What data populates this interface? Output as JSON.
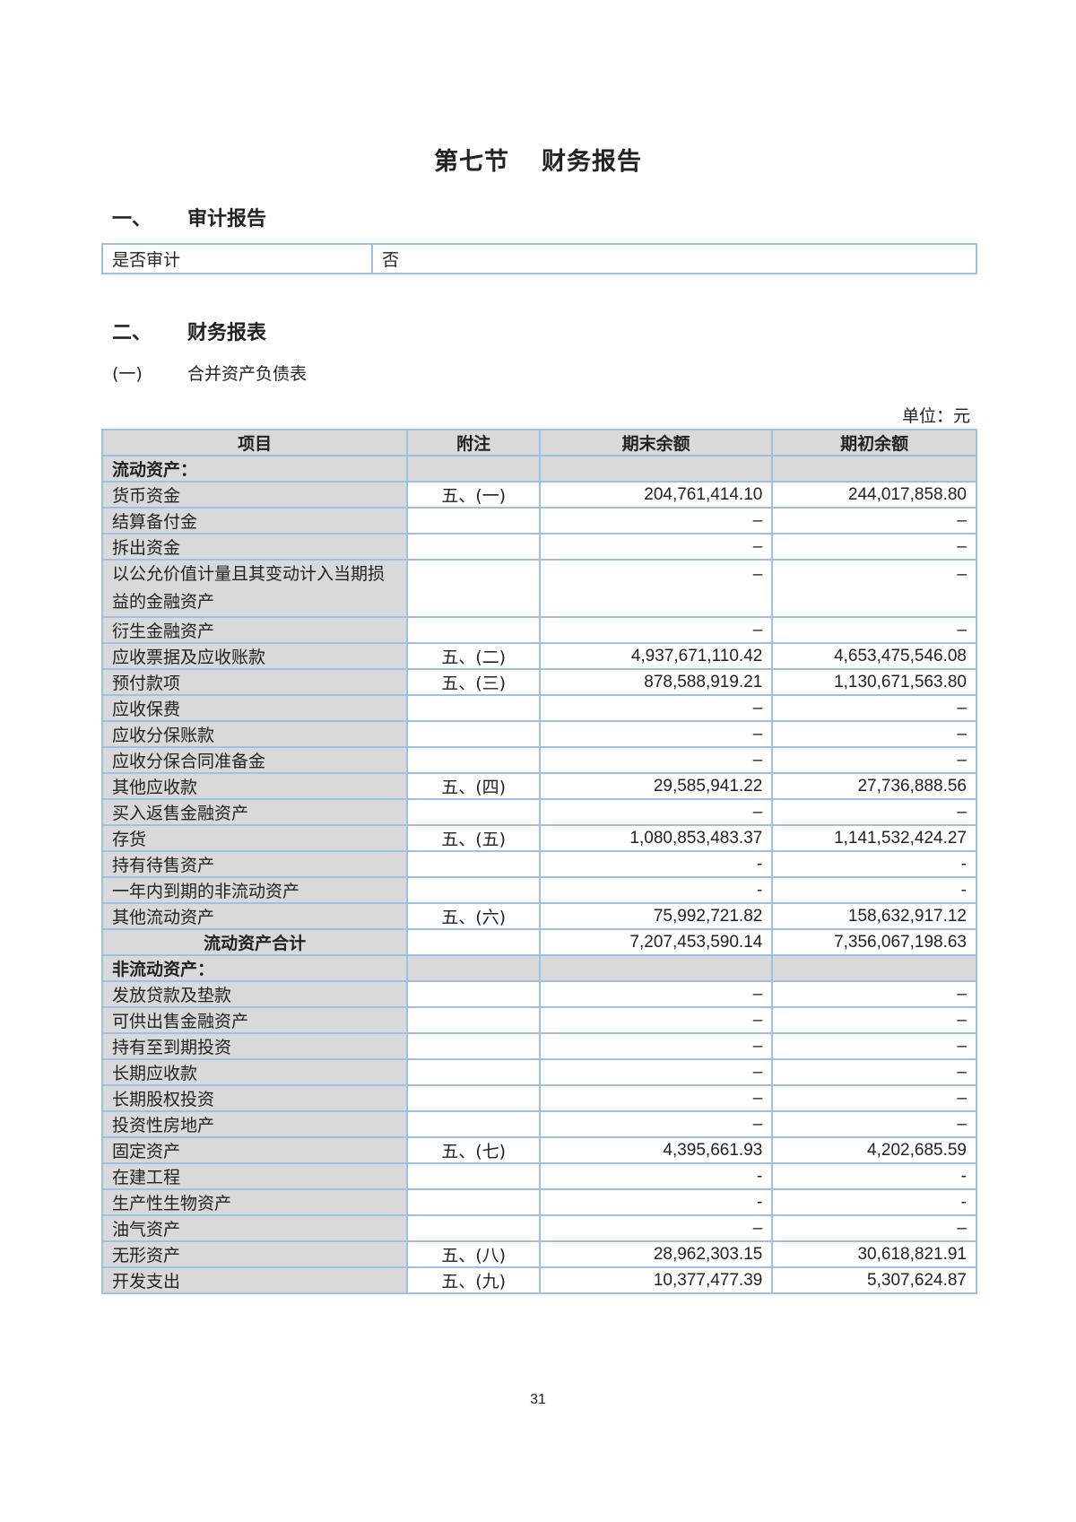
{
  "title": {
    "part1": "第七节",
    "part2": "财务报告"
  },
  "section1": {
    "num": "一、",
    "label": "审计报告"
  },
  "audit": {
    "label": "是否审计",
    "value": "否"
  },
  "section2": {
    "num": "二、",
    "label": "财务报表"
  },
  "subsection1": {
    "num": "(一)",
    "label": "合并资产负债表"
  },
  "unit": "单位：元",
  "table": {
    "headers": [
      "项目",
      "附注",
      "期末余额",
      "期初余额"
    ],
    "rows": [
      {
        "type": "section",
        "name": "流动资产："
      },
      {
        "name": "货币资金",
        "note": "五、(一)",
        "end": "204,761,414.10",
        "begin": "244,017,858.80"
      },
      {
        "name": "结算备付金",
        "note": "",
        "end": "–",
        "begin": "–"
      },
      {
        "name": "拆出资金",
        "note": "",
        "end": "–",
        "begin": "–"
      },
      {
        "type": "double",
        "name": "以公允价值计量且其变动计入当期损益的金融资产",
        "note": "",
        "end": "–",
        "begin": "–"
      },
      {
        "name": "衍生金融资产",
        "note": "",
        "end": "–",
        "begin": "–"
      },
      {
        "name": "应收票据及应收账款",
        "note": "五、(二)",
        "end": "4,937,671,110.42",
        "begin": "4,653,475,546.08"
      },
      {
        "name": "预付款项",
        "note": "五、(三)",
        "end": "878,588,919.21",
        "begin": "1,130,671,563.80"
      },
      {
        "name": "应收保费",
        "note": "",
        "end": "–",
        "begin": "–"
      },
      {
        "name": "应收分保账款",
        "note": "",
        "end": "–",
        "begin": "–"
      },
      {
        "name": "应收分保合同准备金",
        "note": "",
        "end": "–",
        "begin": "–"
      },
      {
        "name": "其他应收款",
        "note": "五、(四)",
        "end": "29,585,941.22",
        "begin": "27,736,888.56"
      },
      {
        "name": "买入返售金融资产",
        "note": "",
        "end": "–",
        "begin": "–"
      },
      {
        "name": "存货",
        "note": "五、(五)",
        "end": "1,080,853,483.37",
        "begin": "1,141,532,424.27"
      },
      {
        "name": "持有待售资产",
        "note": "",
        "end": "-",
        "begin": "-"
      },
      {
        "name": "一年内到期的非流动资产",
        "note": "",
        "end": "-",
        "begin": "-"
      },
      {
        "name": "其他流动资产",
        "note": "五、(六)",
        "end": "75,992,721.82",
        "begin": "158,632,917.12"
      },
      {
        "type": "total",
        "name": "流动资产合计",
        "note": "",
        "end": "7,207,453,590.14",
        "begin": "7,356,067,198.63"
      },
      {
        "type": "section",
        "name": "非流动资产："
      },
      {
        "name": "发放贷款及垫款",
        "note": "",
        "end": "–",
        "begin": "–"
      },
      {
        "name": "可供出售金融资产",
        "note": "",
        "end": "–",
        "begin": "–"
      },
      {
        "name": "持有至到期投资",
        "note": "",
        "end": "–",
        "begin": "–"
      },
      {
        "name": "长期应收款",
        "note": "",
        "end": "–",
        "begin": "–"
      },
      {
        "name": "长期股权投资",
        "note": "",
        "end": "–",
        "begin": "–"
      },
      {
        "name": "投资性房地产",
        "note": "",
        "end": "–",
        "begin": "–"
      },
      {
        "name": "固定资产",
        "note": "五、(七)",
        "end": "4,395,661.93",
        "begin": "4,202,685.59"
      },
      {
        "name": "在建工程",
        "note": "",
        "end": "-",
        "begin": "-"
      },
      {
        "name": "生产性生物资产",
        "note": "",
        "end": "-",
        "begin": "-"
      },
      {
        "name": "油气资产",
        "note": "",
        "end": "–",
        "begin": "–"
      },
      {
        "name": "无形资产",
        "note": "五、(八)",
        "end": "28,962,303.15",
        "begin": "30,618,821.91"
      },
      {
        "name": "开发支出",
        "note": "五、(九)",
        "end": "10,377,477.39",
        "begin": "5,307,624.87"
      }
    ]
  },
  "page_number": "31",
  "colors": {
    "border": "#9dc0e4",
    "shade": "#d9d9d9"
  }
}
